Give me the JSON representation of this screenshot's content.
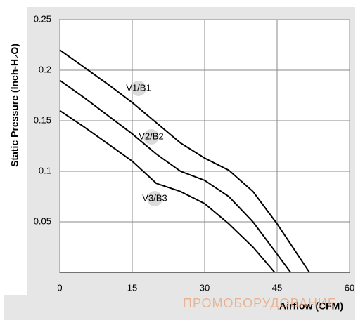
{
  "chart_data": {
    "type": "line",
    "y_label": "Static Pressure (Inch-H₂O)",
    "x_label": "Airflow (CFM)",
    "watermark": "ПРОМОБОРУДОВАНИЕ",
    "xlim": [
      0,
      60
    ],
    "xticks": [
      0,
      15,
      30,
      45,
      60
    ],
    "ylim": [
      0,
      0.25
    ],
    "yticks": [
      0.05,
      0.1,
      0.15,
      0.2,
      0.25
    ],
    "grid": true,
    "series": [
      {
        "name": "V1/B1",
        "color": "#000000",
        "x": [
          0,
          5,
          10,
          15,
          20,
          25,
          30,
          35,
          40,
          45,
          51.7
        ],
        "values": [
          0.22,
          0.203,
          0.186,
          0.168,
          0.148,
          0.128,
          0.113,
          0.101,
          0.08,
          0.048,
          0
        ]
      },
      {
        "name": "V2/B2",
        "color": "#000000",
        "x": [
          0,
          5,
          10,
          15,
          20,
          25,
          30,
          35,
          40,
          45,
          47.8
        ],
        "values": [
          0.19,
          0.173,
          0.155,
          0.137,
          0.117,
          0.1,
          0.091,
          0.075,
          0.05,
          0.018,
          0
        ]
      },
      {
        "name": "V3/B3",
        "color": "#000000",
        "x": [
          0,
          5,
          10,
          15,
          20,
          25,
          30,
          35,
          40,
          44.5
        ],
        "values": [
          0.16,
          0.144,
          0.127,
          0.11,
          0.088,
          0.08,
          0.068,
          0.048,
          0.025,
          0
        ]
      }
    ]
  }
}
